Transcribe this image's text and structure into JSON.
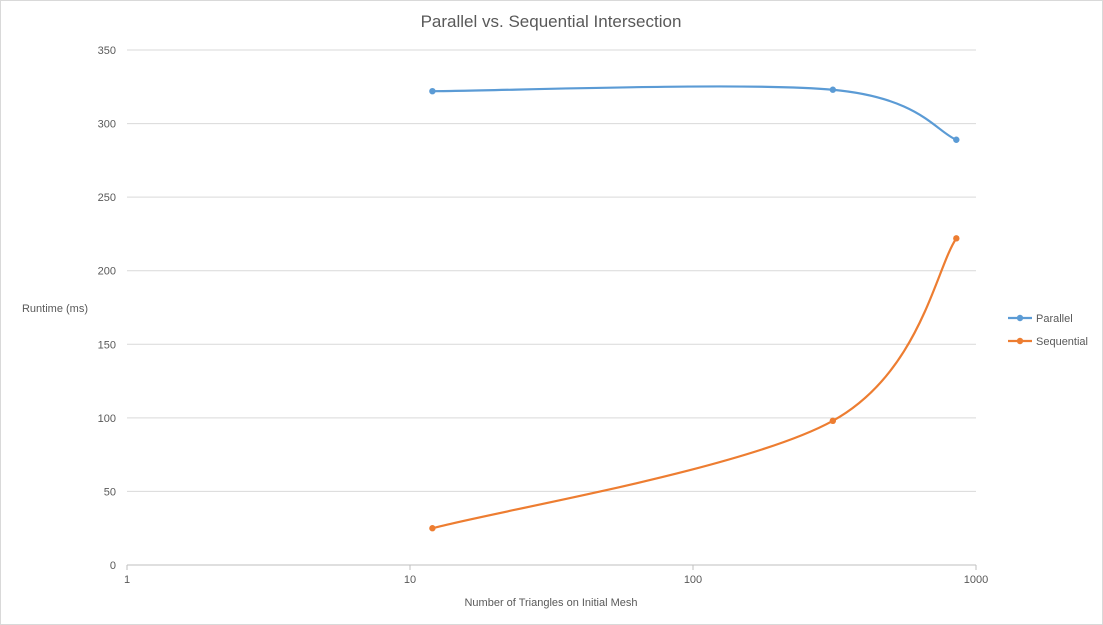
{
  "chart_data": {
    "type": "line",
    "title": "Parallel vs. Sequential Intersection",
    "xlabel": "Number  of Triangles on Initial Mesh",
    "ylabel": "Runtime  (ms)",
    "x_scale": "log",
    "xlim": [
      1,
      1000
    ],
    "ylim": [
      0,
      350
    ],
    "x_ticks": [
      1,
      10,
      100,
      1000
    ],
    "x_tick_labels": [
      "1",
      "10",
      "100",
      "1000"
    ],
    "y_ticks": [
      0,
      50,
      100,
      150,
      200,
      250,
      300,
      350
    ],
    "y_tick_labels": [
      "0",
      "50",
      "100",
      "150",
      "200",
      "250",
      "300",
      "350"
    ],
    "grid": "horizontal",
    "legend": "right",
    "smooth": true,
    "series": [
      {
        "name": "Parallel",
        "color": "#5b9bd5",
        "x": [
          12,
          312,
          852
        ],
        "y": [
          322,
          323,
          289
        ]
      },
      {
        "name": "Sequential",
        "color": "#ed7d31",
        "x": [
          12,
          312,
          852
        ],
        "y": [
          25,
          98,
          222
        ]
      }
    ]
  }
}
